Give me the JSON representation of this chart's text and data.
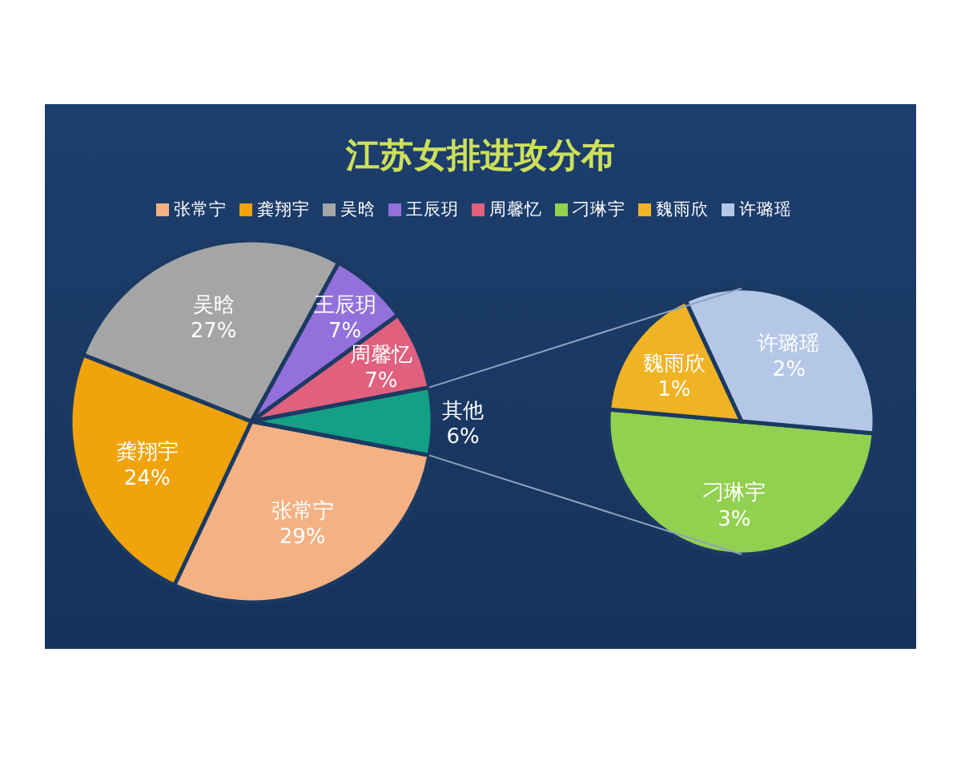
{
  "chart_data": [
    {
      "type": "pie",
      "title": "江苏女排进攻分布",
      "legend": "top",
      "categories": [
        "张常宁",
        "龚翔宇",
        "吴晗",
        "王辰玥",
        "周馨忆",
        "其他"
      ],
      "values": [
        29,
        24,
        27,
        7,
        7,
        6
      ],
      "colors": [
        "#f4b183",
        "#f0a30a",
        "#a5a5a5",
        "#9370db",
        "#e0607e",
        "#13a085"
      ],
      "value_labels": [
        "29%",
        "24%",
        "27%",
        "7%",
        "7%",
        "6%"
      ]
    },
    {
      "type": "pie",
      "legend": "top",
      "categories": [
        "刁琳宇",
        "魏雨欣",
        "许璐瑶"
      ],
      "values": [
        3,
        1,
        2
      ],
      "colors": [
        "#92d050",
        "#f0b323",
        "#b4c7e7"
      ],
      "value_labels": [
        "3%",
        "1%",
        "2%"
      ]
    }
  ]
}
